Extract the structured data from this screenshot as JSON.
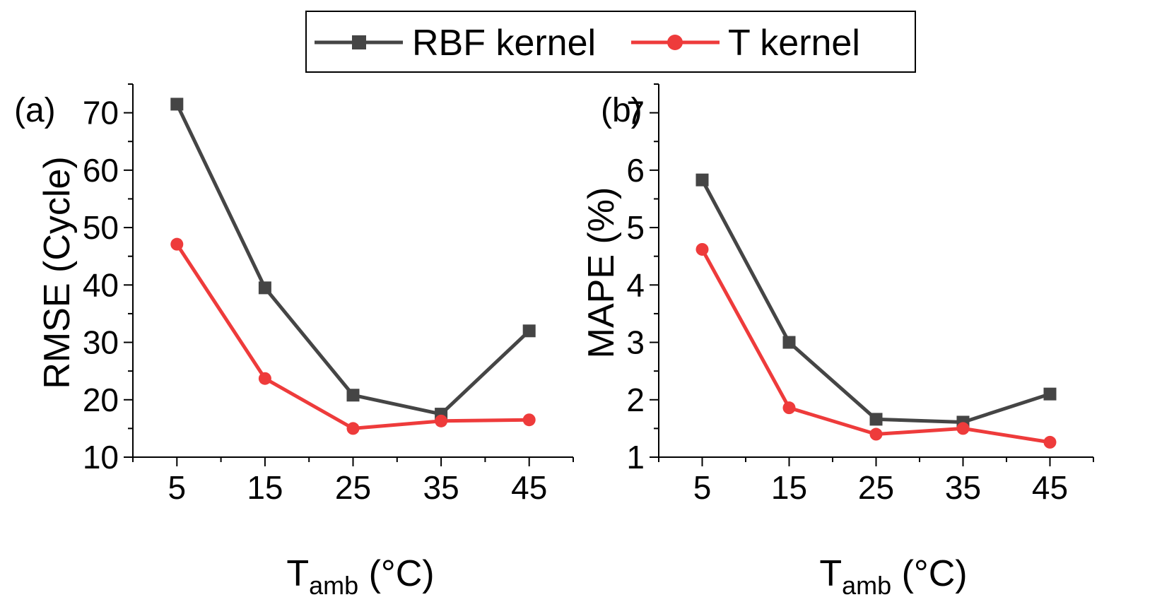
{
  "legend": {
    "entries": [
      {
        "name": "RBF kernel",
        "color": "#454545",
        "marker": "square"
      },
      {
        "name": "T kernel",
        "color": "#ee3b3b",
        "marker": "circle"
      }
    ]
  },
  "chart_data": [
    {
      "type": "line",
      "panel_label": "(a)",
      "title": "",
      "xlabel": "T",
      "xlabel_sub": "amb",
      "xlabel_unit": " (°C)",
      "ylabel": "RMSE (Cycle)",
      "x": [
        5,
        15,
        25,
        35,
        45
      ],
      "xticks": [
        5,
        15,
        25,
        35,
        45
      ],
      "xtick_labels": [
        "5",
        "15",
        "25",
        "35",
        "45"
      ],
      "xlim": [
        0,
        50
      ],
      "yticks": [
        10,
        20,
        30,
        40,
        50,
        60,
        70
      ],
      "ytick_labels": [
        "10",
        "20",
        "30",
        "40",
        "50",
        "60",
        "70"
      ],
      "ylim": [
        10,
        75
      ],
      "grid": false,
      "series": [
        {
          "name": "RBF kernel",
          "values": [
            71.5,
            39.5,
            20.8,
            17.5,
            32.0
          ]
        },
        {
          "name": "T kernel",
          "values": [
            47.1,
            23.7,
            15.0,
            16.3,
            16.5
          ]
        }
      ]
    },
    {
      "type": "line",
      "panel_label": "(b)",
      "title": "",
      "xlabel": "T",
      "xlabel_sub": "amb",
      "xlabel_unit": " (°C)",
      "ylabel": "MAPE (%)",
      "x": [
        5,
        15,
        25,
        35,
        45
      ],
      "xticks": [
        5,
        15,
        25,
        35,
        45
      ],
      "xtick_labels": [
        "5",
        "15",
        "25",
        "35",
        "45"
      ],
      "xlim": [
        0,
        50
      ],
      "yticks": [
        1,
        2,
        3,
        4,
        5,
        6,
        7
      ],
      "ytick_labels": [
        "1",
        "2",
        "3",
        "4",
        "5",
        "6",
        "7"
      ],
      "ylim": [
        1,
        7.5
      ],
      "grid": false,
      "series": [
        {
          "name": "RBF kernel",
          "values": [
            5.83,
            3.0,
            1.66,
            1.61,
            2.1
          ]
        },
        {
          "name": "T kernel",
          "values": [
            4.62,
            1.86,
            1.4,
            1.5,
            1.26
          ]
        }
      ]
    }
  ]
}
